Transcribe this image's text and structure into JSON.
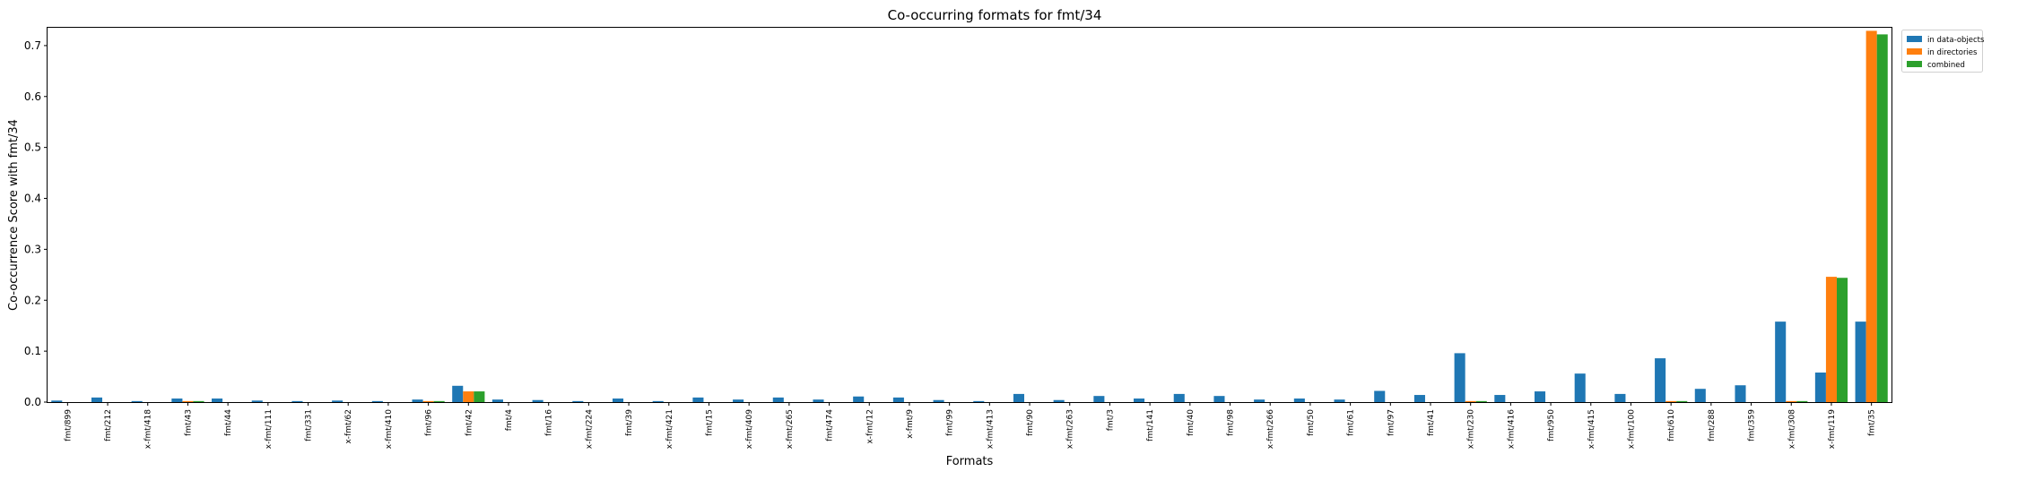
{
  "chart_data": {
    "type": "bar",
    "title": "Co-occurring formats for fmt/34",
    "xlabel": "Formats",
    "ylabel": "Co-occurrence Score with fmt/34",
    "ylim": [
      0,
      0.735
    ],
    "yticks": [
      "0.0",
      "0.1",
      "0.2",
      "0.3",
      "0.4",
      "0.5",
      "0.6",
      "0.7"
    ],
    "legend_position": "upper right, outside plot",
    "colors": {
      "in data-objects": "#1f77b4",
      "in directories": "#ff7f0e",
      "combined": "#2ca02c"
    },
    "categories": [
      "fmt/899",
      "fmt/212",
      "x-fmt/418",
      "fmt/43",
      "fmt/44",
      "x-fmt/111",
      "fmt/331",
      "x-fmt/62",
      "x-fmt/410",
      "fmt/96",
      "fmt/42",
      "fmt/4",
      "fmt/16",
      "x-fmt/224",
      "fmt/39",
      "x-fmt/421",
      "fmt/15",
      "x-fmt/409",
      "x-fmt/265",
      "fmt/474",
      "x-fmt/12",
      "x-fmt/9",
      "fmt/99",
      "x-fmt/413",
      "fmt/90",
      "x-fmt/263",
      "fmt/3",
      "fmt/141",
      "fmt/40",
      "fmt/98",
      "x-fmt/266",
      "fmt/50",
      "fmt/61",
      "fmt/97",
      "fmt/41",
      "x-fmt/230",
      "x-fmt/416",
      "fmt/950",
      "x-fmt/415",
      "x-fmt/100",
      "fmt/610",
      "fmt/288",
      "fmt/359",
      "x-fmt/308",
      "x-fmt/119",
      "fmt/35"
    ],
    "series": [
      {
        "name": "in data-objects",
        "values": [
          0.003,
          0.009,
          0.002,
          0.007,
          0.007,
          0.003,
          0.002,
          0.003,
          0.002,
          0.005,
          0.032,
          0.005,
          0.004,
          0.002,
          0.007,
          0.002,
          0.009,
          0.005,
          0.009,
          0.005,
          0.011,
          0.009,
          0.004,
          0.002,
          0.016,
          0.004,
          0.012,
          0.007,
          0.016,
          0.012,
          0.005,
          0.007,
          0.005,
          0.022,
          0.014,
          0.096,
          0.014,
          0.021,
          0.056,
          0.016,
          0.086,
          0.026,
          0.033,
          0.158,
          0.058,
          0.158
        ]
      },
      {
        "name": "in directories",
        "values": [
          0,
          0,
          0,
          0.002,
          0,
          0,
          0,
          0,
          0,
          0.002,
          0.021,
          0,
          0,
          0,
          0,
          0,
          0,
          0,
          0,
          0,
          0,
          0,
          0,
          0,
          0,
          0,
          0,
          0,
          0,
          0,
          0,
          0,
          0,
          0,
          0,
          0.002,
          0,
          0,
          0,
          0,
          0.002,
          0,
          0,
          0.002,
          0.246,
          0.729
        ]
      },
      {
        "name": "combined",
        "values": [
          0,
          0,
          0,
          0.002,
          0,
          0,
          0,
          0,
          0,
          0.002,
          0.021,
          0,
          0,
          0,
          0,
          0,
          0,
          0,
          0,
          0,
          0,
          0,
          0,
          0,
          0,
          0,
          0,
          0,
          0,
          0,
          0,
          0,
          0,
          0,
          0,
          0.002,
          0,
          0,
          0,
          0,
          0.002,
          0,
          0,
          0.002,
          0.244,
          0.722
        ]
      }
    ]
  }
}
